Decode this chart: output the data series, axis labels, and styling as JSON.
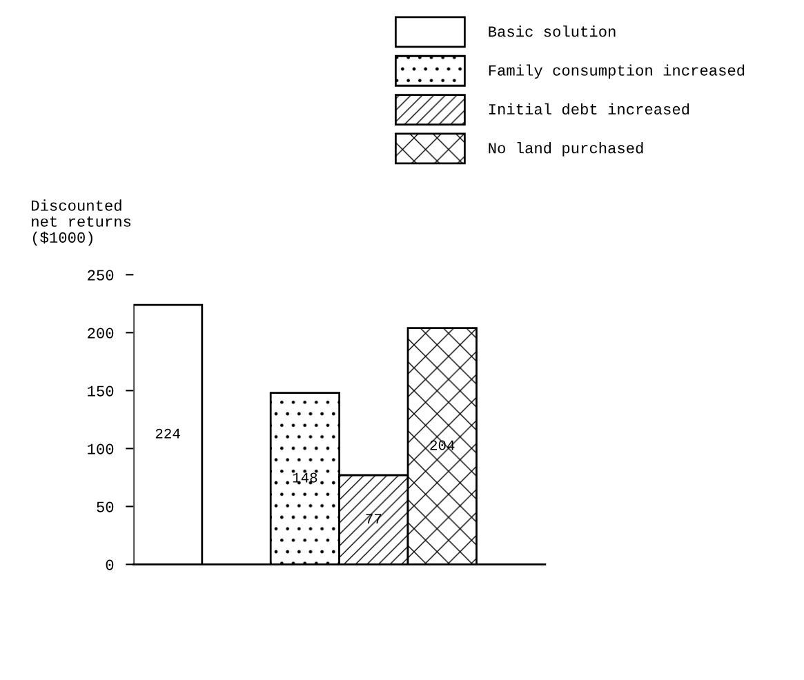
{
  "chart_data": {
    "type": "bar",
    "ylabel": "Discounted\nnet returns\n($1000)",
    "categories": [
      null,
      null,
      null,
      null,
      null,
      null
    ],
    "series": [
      {
        "name": "Basic solution",
        "color": "#ffffff",
        "values": [
          224,
          null,
          null,
          null,
          null,
          null
        ]
      },
      {
        "name": "Family consumption increased",
        "color": "#000000",
        "values": [
          null,
          null,
          148,
          null,
          null,
          null
        ]
      },
      {
        "name": "Initial debt increased",
        "color": "#000000",
        "values": [
          null,
          null,
          null,
          77,
          null,
          null
        ]
      },
      {
        "name": "No land purchased",
        "color": "#000000",
        "values": [
          null,
          null,
          null,
          null,
          204,
          null
        ]
      }
    ],
    "ylim": [
      0,
      250
    ],
    "yticks": [
      0,
      50,
      100,
      150,
      200,
      250
    ],
    "data_labels": true,
    "legend": "top right",
    "grid": false,
    "tick_labels": "y"
  }
}
